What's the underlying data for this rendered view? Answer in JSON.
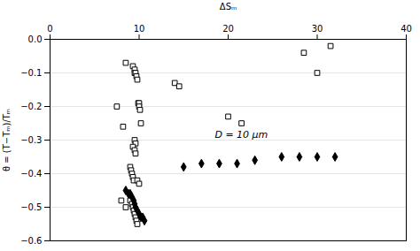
{
  "chart_data": {
    "type": "scatter",
    "xlabel": "ΔSₘ",
    "ylabel": "θ = (T−Tₘ)/Tₘ",
    "xlim": [
      0,
      40
    ],
    "ylim": [
      -0.6,
      0
    ],
    "xticks": [
      0,
      10,
      20,
      30,
      40
    ],
    "yticks": [
      {
        "value": 0,
        "label": "0.0"
      },
      {
        "value": -0.1,
        "label": "−0.1"
      },
      {
        "value": -0.2,
        "label": "−0.2"
      },
      {
        "value": -0.3,
        "label": "−0.3"
      },
      {
        "value": -0.4,
        "label": "−0.4"
      },
      {
        "value": -0.5,
        "label": "−0.5"
      },
      {
        "value": -0.6,
        "label": "−0.6"
      }
    ],
    "grid": "y",
    "annotations": [
      {
        "text": "D = 10 μm",
        "x": 18.5,
        "y": -0.285
      }
    ],
    "series": [
      {
        "marker": "open_square",
        "color": "#000000",
        "x": [
          8.5,
          9.3,
          9.5,
          9.5,
          9.6,
          9.7,
          9.8,
          9.9,
          10.0,
          10.0,
          10.1,
          10.2,
          8.0,
          8.5,
          9.0,
          9.2,
          9.3,
          9.4,
          9.5,
          9.6,
          9.7,
          9.8,
          7.5,
          8.2,
          9.0,
          9.1,
          9.2,
          9.3,
          9.4,
          9.5,
          9.6,
          9.3,
          9.5,
          9.6,
          9.8,
          10.0,
          14.0,
          14.5,
          20.0,
          21.5,
          28.5,
          30.0,
          31.5
        ],
        "values": [
          -0.07,
          -0.08,
          -0.09,
          -0.1,
          -0.1,
          -0.11,
          -0.12,
          -0.19,
          -0.19,
          -0.2,
          -0.21,
          -0.25,
          -0.48,
          -0.5,
          -0.48,
          -0.49,
          -0.5,
          -0.51,
          -0.52,
          -0.53,
          -0.54,
          -0.55,
          -0.2,
          -0.26,
          -0.38,
          -0.39,
          -0.4,
          -0.41,
          -0.42,
          -0.3,
          -0.31,
          -0.32,
          -0.33,
          -0.34,
          -0.42,
          -0.43,
          -0.13,
          -0.14,
          -0.23,
          -0.25,
          -0.04,
          -0.1,
          -0.02
        ]
      },
      {
        "marker": "diamond",
        "color": "#000000",
        "x": [
          8.5,
          8.8,
          9.0,
          9.2,
          9.4,
          9.5,
          9.6,
          9.8,
          10.0,
          10.2,
          10.4,
          10.6,
          15.0,
          17.0,
          19.0,
          21.0,
          23.0,
          26.0,
          28.0,
          30.0,
          32.0
        ],
        "values": [
          -0.45,
          -0.46,
          -0.46,
          -0.47,
          -0.48,
          -0.49,
          -0.5,
          -0.51,
          -0.52,
          -0.53,
          -0.53,
          -0.54,
          -0.38,
          -0.37,
          -0.37,
          -0.37,
          -0.36,
          -0.35,
          -0.35,
          -0.35,
          -0.35
        ]
      }
    ]
  }
}
